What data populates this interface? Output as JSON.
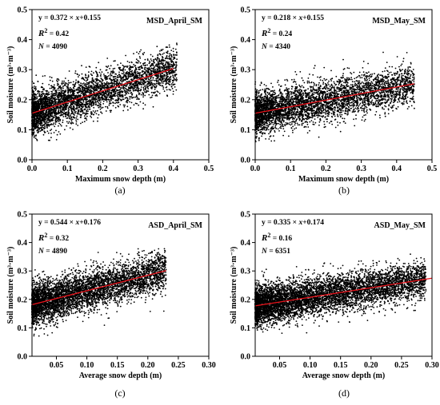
{
  "chart_data": [
    {
      "panel": "(a)",
      "type": "scatter",
      "title": "MSD_April_SM",
      "xlabel": "Maximum snow depth (m)",
      "ylabel": "Soil moisture (m³·m⁻³)",
      "xlim": [
        0,
        0.5
      ],
      "ylim": [
        0,
        0.5
      ],
      "xticks": [
        "0.0",
        "0.1",
        "0.2",
        "0.3",
        "0.4",
        "0.5"
      ],
      "yticks": [
        "0.0",
        "0.1",
        "0.2",
        "0.3",
        "0.4",
        "0.5"
      ],
      "equation_prefix": "y = 0.372",
      "equation_mid": "x",
      "equation_suffix": "+0.155",
      "r2_value": "0.42",
      "n_value": "4090",
      "fit": {
        "slope": 0.372,
        "intercept": 0.155,
        "x_range": [
          0.0,
          0.4
        ]
      },
      "point_count": 4090,
      "x_extent": [
        0.0,
        0.41
      ],
      "residual_sd": 0.035,
      "point_color": "#000000",
      "fit_color": "#e8131b"
    },
    {
      "panel": "(b)",
      "type": "scatter",
      "title": "MSD_May_SM",
      "xlabel": "Maximum snow depth (m)",
      "ylabel": "Soil moisture (m³·m⁻³)",
      "xlim": [
        0,
        0.5
      ],
      "ylim": [
        0,
        0.5
      ],
      "xticks": [
        "0.0",
        "0.1",
        "0.2",
        "0.3",
        "0.4",
        "0.5"
      ],
      "yticks": [
        "0.0",
        "0.1",
        "0.2",
        "0.3",
        "0.4",
        "0.5"
      ],
      "equation_prefix": "y = 0.218",
      "equation_mid": "x",
      "equation_suffix": "+0.155",
      "r2_value": "0.24",
      "n_value": "4340",
      "fit": {
        "slope": 0.218,
        "intercept": 0.155,
        "x_range": [
          0.0,
          0.45
        ]
      },
      "point_count": 4340,
      "x_extent": [
        0.0,
        0.45
      ],
      "residual_sd": 0.034,
      "point_color": "#000000",
      "fit_color": "#e8131b"
    },
    {
      "panel": "(c)",
      "type": "scatter",
      "title": "ASD_April_SM",
      "xlabel": "Average snow depth (m)",
      "ylabel": "Soil moisture (m³·m⁻³)",
      "xlim": [
        0.01,
        0.3
      ],
      "ylim": [
        0,
        0.5
      ],
      "xticks": [
        "0.05",
        "0.10",
        "0.15",
        "0.20",
        "0.25",
        "0.30"
      ],
      "yticks": [
        "0.0",
        "0.1",
        "0.2",
        "0.3",
        "0.4",
        "0.5"
      ],
      "equation_prefix": "y = 0.544",
      "equation_mid": "x",
      "equation_suffix": "+0.176",
      "r2_value": "0.32",
      "n_value": "4890",
      "fit": {
        "slope": 0.544,
        "intercept": 0.176,
        "x_range": [
          0.01,
          0.23
        ]
      },
      "point_count": 4890,
      "x_extent": [
        0.01,
        0.23
      ],
      "residual_sd": 0.036,
      "point_color": "#000000",
      "fit_color": "#e8131b"
    },
    {
      "panel": "(d)",
      "type": "scatter",
      "title": "ASD_May_SM",
      "xlabel": "Average snow depth (m)",
      "ylabel": "Soil moisture (m³·m⁻³)",
      "xlim": [
        0.01,
        0.3
      ],
      "ylim": [
        0,
        0.5
      ],
      "xticks": [
        "0.05",
        "0.10",
        "0.15",
        "0.20",
        "0.25",
        "0.30"
      ],
      "yticks": [
        "0.0",
        "0.1",
        "0.2",
        "0.3",
        "0.4",
        "0.5"
      ],
      "equation_prefix": "y = 0.335",
      "equation_mid": "x",
      "equation_suffix": "+0.174",
      "r2_value": "0.16",
      "n_value": "6351",
      "fit": {
        "slope": 0.335,
        "intercept": 0.174,
        "x_range": [
          0.01,
          0.3
        ]
      },
      "point_count": 6351,
      "x_extent": [
        0.01,
        0.29
      ],
      "residual_sd": 0.034,
      "point_color": "#000000",
      "fit_color": "#e8131b"
    }
  ]
}
